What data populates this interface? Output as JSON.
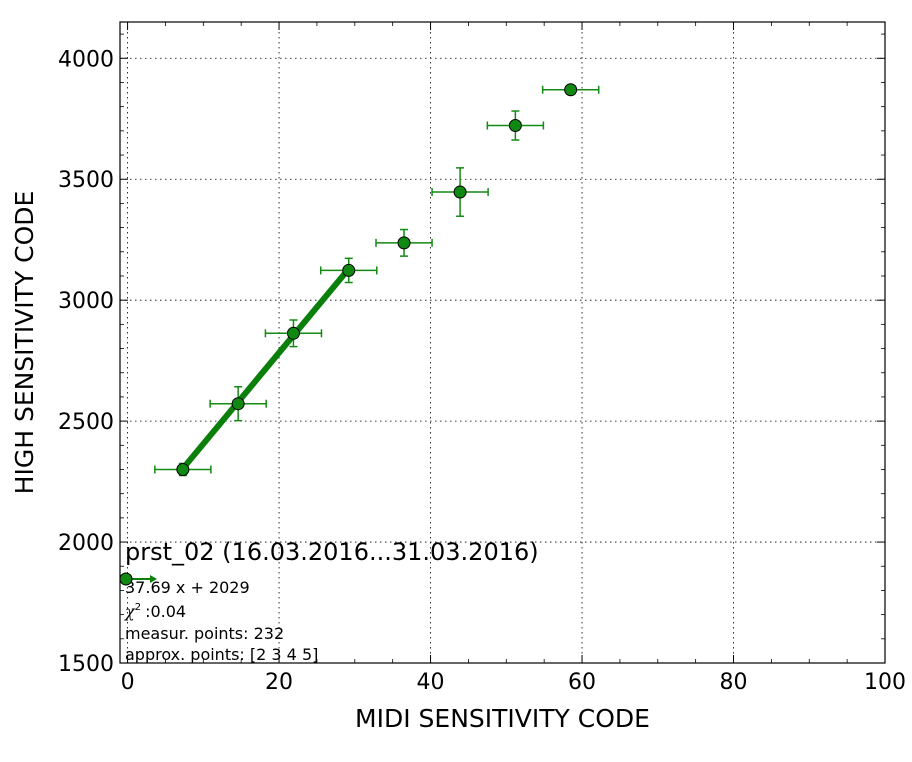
{
  "chart_data": {
    "type": "scatter",
    "xlabel": "MIDI SENSITIVITY CODE",
    "ylabel": "HIGH SENSITIVITY CODE",
    "xlim": [
      -1,
      100
    ],
    "ylim": [
      1500,
      4150
    ],
    "xticks": [
      0,
      20,
      40,
      60,
      80,
      100
    ],
    "yticks": [
      1500,
      2000,
      2500,
      3000,
      3500,
      4000
    ],
    "xtick_labels": [
      "0",
      "20",
      "40",
      "60",
      "80",
      "100"
    ],
    "ytick_labels": [
      "1500",
      "2000",
      "2500",
      "3000",
      "3500",
      "4000"
    ],
    "grid": true,
    "colors": {
      "marker_fill": "#118811",
      "fit_line": "#0a7f0a",
      "error_bar": "#138a13"
    },
    "points": [
      {
        "x": 7.3,
        "y": 2300,
        "xerr": 3.7,
        "yerr": 25
      },
      {
        "x": 14.6,
        "y": 2572,
        "xerr": 3.7,
        "yerr": 70
      },
      {
        "x": 21.9,
        "y": 2863,
        "xerr": 3.7,
        "yerr": 55
      },
      {
        "x": 29.2,
        "y": 3123,
        "xerr": 3.7,
        "yerr": 50
      },
      {
        "x": 36.5,
        "y": 3237,
        "xerr": 3.7,
        "yerr": 55
      },
      {
        "x": 43.9,
        "y": 3447,
        "xerr": 3.7,
        "yerr": 100
      },
      {
        "x": 51.2,
        "y": 3722,
        "xerr": 3.7,
        "yerr": 60
      },
      {
        "x": 58.5,
        "y": 3870,
        "xerr": 3.7,
        "yerr": 10
      }
    ],
    "fit": {
      "slope": 37.69,
      "intercept": 2029,
      "x_range": [
        7.3,
        29.2
      ]
    },
    "legend": {
      "placement": "bottom-left",
      "title": "prst_02 (16.03.2016...31.03.2016)",
      "equation": "37.69 x + 2029",
      "chi2_symbol": "χ",
      "chi2_exp": "2",
      "chi2_value": ":0.04",
      "measur_points": "measur. points: 232",
      "approx_points": "approx. points: [2 3 4 5]"
    }
  }
}
